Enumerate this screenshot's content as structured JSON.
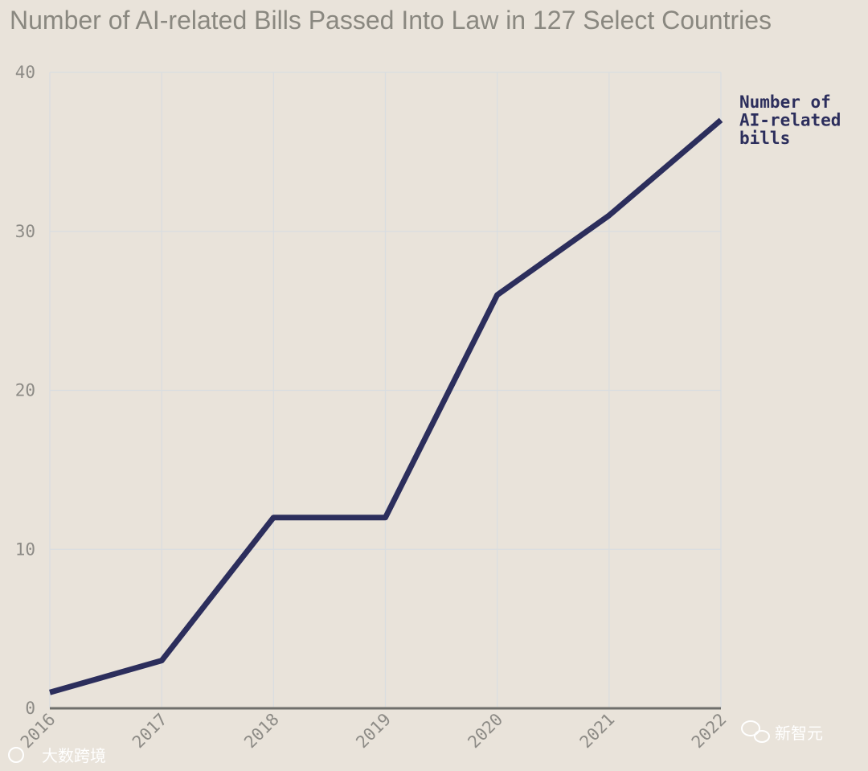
{
  "chart_data": {
    "type": "line",
    "title": "Number of AI-related Bills Passed Into Law in 127 Select Countries",
    "categories": [
      "2016",
      "2017",
      "2018",
      "2019",
      "2020",
      "2021",
      "2022"
    ],
    "series": [
      {
        "name": "Number of AI-related bills",
        "label_lines": [
          "Number of",
          "AI-related",
          "bills"
        ],
        "values": [
          1,
          3,
          12,
          12,
          26,
          31,
          37
        ],
        "color": "#2c2e5c"
      }
    ],
    "yticks": [
      "0",
      "10",
      "20",
      "30",
      "40"
    ],
    "ylim": [
      0,
      40
    ],
    "xlabel": "",
    "ylabel": "",
    "grid": true
  },
  "watermarks": {
    "left": "大数跨境",
    "right": "新智元"
  },
  "colors": {
    "background": "#e9e3da",
    "line": "#2c2e5c",
    "grid": "#d9dde0",
    "axis": "#6f6f6b",
    "text": "#8d8b86"
  }
}
